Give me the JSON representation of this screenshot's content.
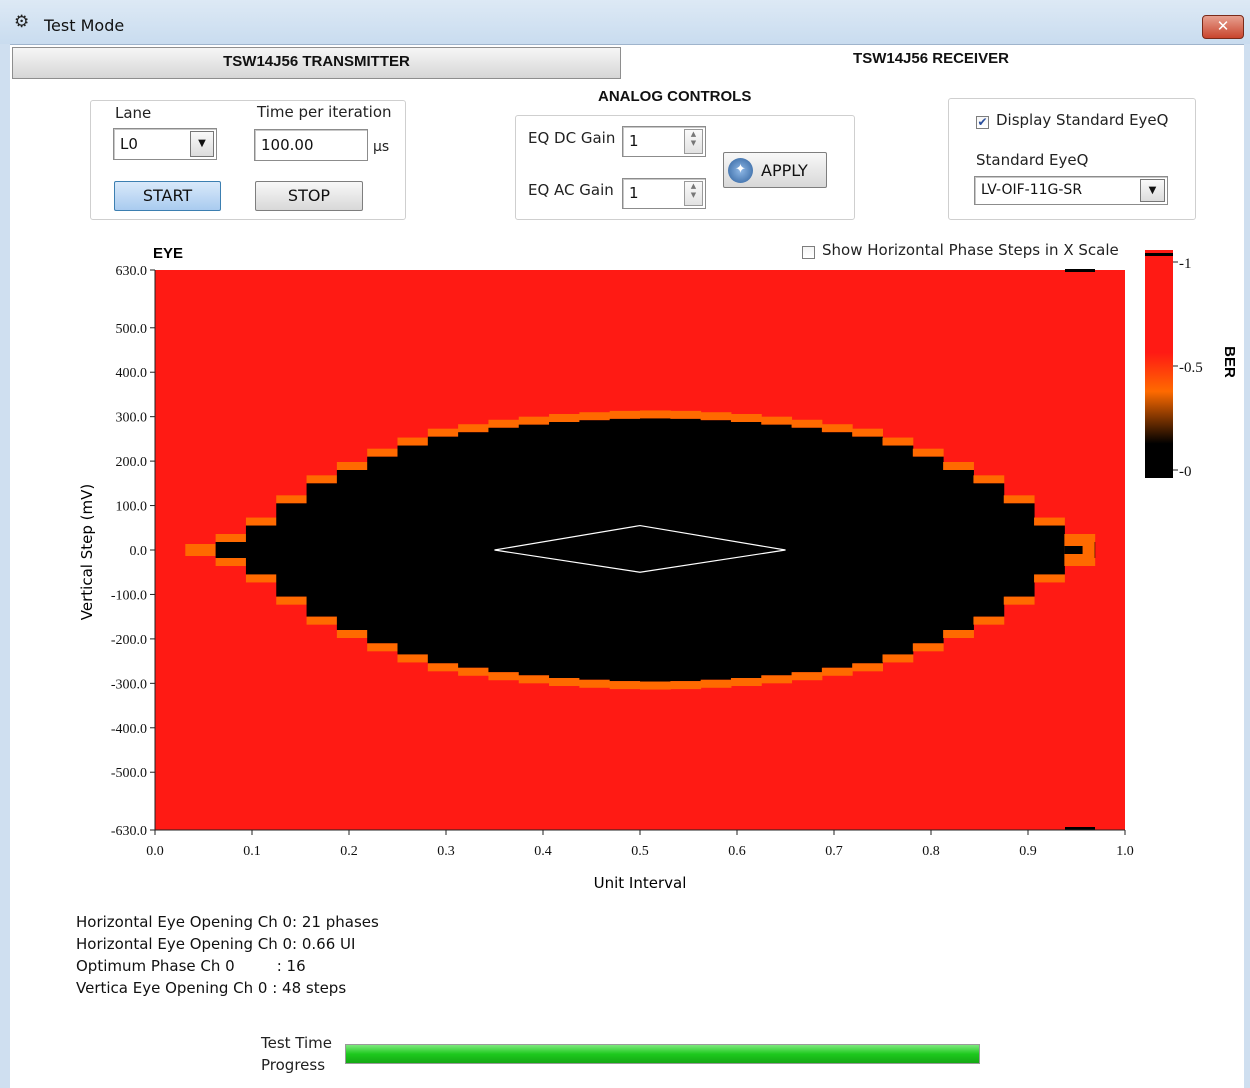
{
  "window": {
    "title": "Test Mode",
    "close_symbol": "✕"
  },
  "tabs": [
    {
      "label": "TSW14J56 TRANSMITTER",
      "selected": false
    },
    {
      "label": "TSW14J56 RECEIVER",
      "selected": true
    }
  ],
  "lane_controls": {
    "lane_label": "Lane",
    "lane_value": "L0",
    "time_label": "Time per iteration",
    "time_value": "100.00",
    "time_unit": "µs",
    "start_label": "START",
    "stop_label": "STOP"
  },
  "analog_controls": {
    "title": "ANALOG CONTROLS",
    "dc_gain_label": "EQ DC Gain",
    "dc_gain_value": "1",
    "ac_gain_label": "EQ AC Gain",
    "ac_gain_value": "1",
    "apply_label": "APPLY"
  },
  "eyeq": {
    "display_label": "Display Standard EyeQ",
    "display_checked": true,
    "standard_label": "Standard EyeQ",
    "standard_value": "LV-OIF-11G-SR"
  },
  "show_phase_steps": {
    "label": "Show Horizontal Phase Steps in X Scale",
    "checked": false
  },
  "colors": {
    "ber_high": "#ff1a14",
    "ber_low": "#000000",
    "ber_mid": "#ff6a00",
    "progress": "#22d422",
    "accent_button": "#bcd6f2"
  },
  "chart_data": {
    "type": "heatmap",
    "title": "EYE",
    "xlabel": "Unit Interval",
    "ylabel": "Vertical Step (mV)",
    "xlim": [
      0.0,
      1.0
    ],
    "ylim": [
      -630.0,
      630.0
    ],
    "x_ticks": [
      "0.0",
      "0.1",
      "0.2",
      "0.3",
      "0.4",
      "0.5",
      "0.6",
      "0.7",
      "0.8",
      "0.9",
      "1.0"
    ],
    "y_ticks": [
      "630.0",
      "500.0",
      "400.0",
      "300.0",
      "200.0",
      "100.0",
      "0.0",
      "-100.0",
      "-200.0",
      "-300.0",
      "-400.0",
      "-500.0",
      "-630.0"
    ],
    "y_tick_values": [
      630,
      500,
      400,
      300,
      200,
      100,
      0,
      -100,
      -200,
      -300,
      -400,
      -500,
      -630
    ],
    "phase_columns": 32,
    "eye_half_heights_mv": [
      0,
      0,
      18,
      55,
      105,
      150,
      180,
      210,
      235,
      255,
      265,
      275,
      282,
      288,
      292,
      295,
      296,
      295,
      292,
      288,
      282,
      275,
      265,
      255,
      235,
      210,
      180,
      150,
      105,
      55,
      18,
      0
    ],
    "eye_opening_ui": [
      0.0625,
      0.875
    ],
    "background_ber": 1,
    "colorbar": {
      "label": "BER",
      "ticks": [
        "-1",
        "-0.5",
        "-0"
      ],
      "tick_values": [
        1,
        0.5,
        0
      ]
    },
    "mask_diamond": [
      [
        0.35,
        0
      ],
      [
        0.5,
        55
      ],
      [
        0.65,
        0
      ],
      [
        0.5,
        -50
      ]
    ]
  },
  "results": {
    "h_opening_phases_label": "Horizontal Eye Opening Ch 0:",
    "h_opening_phases_value": "21 phases",
    "h_opening_ui_label": "Horizontal Eye Opening Ch 0:",
    "h_opening_ui_value": "0.66 UI",
    "optimum_phase_label": "Optimum Phase Ch 0",
    "optimum_phase_value": ": 16",
    "v_opening_label": "Vertica Eye Opening Ch 0",
    "v_opening_value": ": 48 steps"
  },
  "progress": {
    "label_line1": "Test Time",
    "label_line2": "Progress",
    "value": 1.0
  }
}
